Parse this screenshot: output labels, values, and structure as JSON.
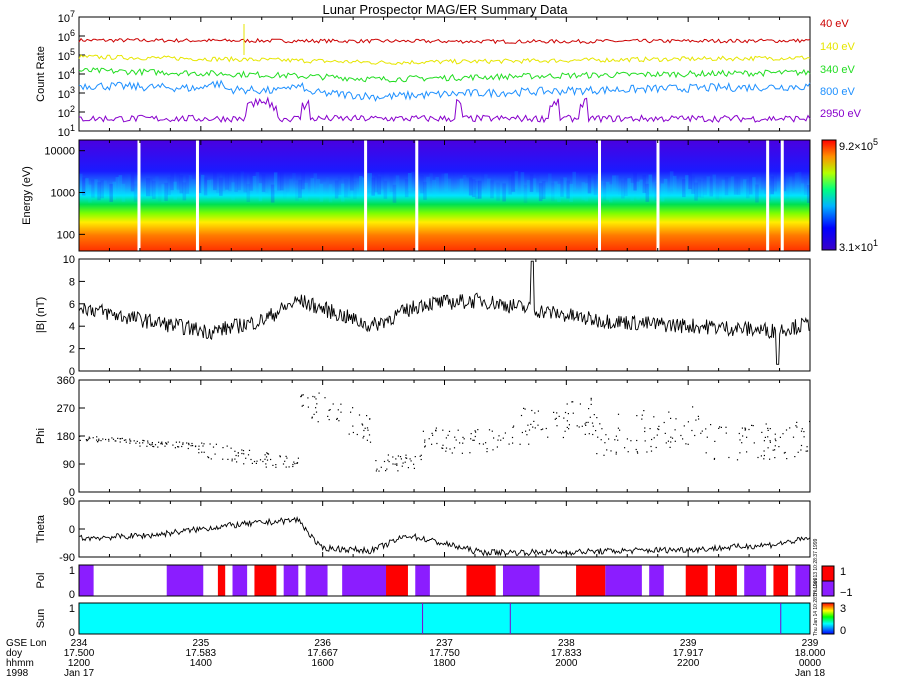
{
  "title": "Lunar Prospector MAG/ER Summary Data",
  "colors": {
    "ch40": "#cc0000",
    "ch140": "#e6e600",
    "ch340": "#22dd22",
    "ch800": "#1e90ff",
    "ch2950": "#8800cc",
    "pol_pos": "#ff0000",
    "pol_neg": "#8b1dff",
    "sun": "#00ffff",
    "line": "#000000"
  },
  "chart_data": [
    {
      "type": "line",
      "name": "count-rate",
      "ylabel": "Count Rate",
      "yscale": "log",
      "ylim": [
        10,
        10000000
      ],
      "yticks": [
        {
          "base": "10",
          "exp": "1"
        },
        {
          "base": "10",
          "exp": "2"
        },
        {
          "base": "10",
          "exp": "3"
        },
        {
          "base": "10",
          "exp": "4"
        },
        {
          "base": "10",
          "exp": "5"
        },
        {
          "base": "10",
          "exp": "6"
        },
        {
          "base": "10",
          "exp": "7"
        }
      ],
      "series": [
        {
          "name": "40 eV",
          "label": "40 eV",
          "color": "#cc0000",
          "base": 600000,
          "jitter": 0.1,
          "breakpoints": [
            [
              0.0,
              1.0
            ],
            [
              0.4,
              0.9
            ],
            [
              0.6,
              0.85
            ],
            [
              1.0,
              0.95
            ]
          ]
        },
        {
          "name": "140 eV",
          "label": "140 eV",
          "color": "#e6e600",
          "base": 80000,
          "jitter": 0.12,
          "breakpoints": [
            [
              0.0,
              1.0
            ],
            [
              0.41,
              0.5
            ],
            [
              0.6,
              0.6
            ],
            [
              1.0,
              0.9
            ]
          ]
        },
        {
          "name": "340 eV",
          "label": "340 eV",
          "color": "#22dd22",
          "base": 15000,
          "jitter": 0.16,
          "breakpoints": [
            [
              0.0,
              1.0
            ],
            [
              0.41,
              0.35
            ],
            [
              0.6,
              0.5
            ],
            [
              1.0,
              0.8
            ]
          ]
        },
        {
          "name": "800 eV",
          "label": "800 eV",
          "color": "#1e90ff",
          "base": 2500,
          "jitter": 0.22,
          "breakpoints": [
            [
              0.0,
              1.0
            ],
            [
              0.41,
              0.25
            ],
            [
              0.6,
              0.45
            ],
            [
              1.0,
              0.9
            ]
          ]
        },
        {
          "name": "2950 eV",
          "label": "2950 eV",
          "color": "#8800cc",
          "base": 45,
          "jitter": 0.18,
          "breakpoints": [
            [
              0.0,
              1.0
            ],
            [
              1.0,
              1.0
            ]
          ]
        }
      ]
    },
    {
      "type": "heatmap",
      "name": "energy-spectrogram",
      "ylabel": "Energy (eV)",
      "yscale": "log",
      "ylim": [
        40,
        18000
      ],
      "yticks": [
        "100",
        "1000",
        "10000"
      ],
      "colorbar": {
        "max_base": "9.2×10",
        "max_exp": "5",
        "min_base": "3.1×10",
        "min_exp": "1"
      },
      "gap_positions": [
        0.08,
        0.16,
        0.39,
        0.46,
        0.71,
        0.79,
        0.94,
        0.96
      ]
    },
    {
      "type": "line",
      "name": "field-magnitude",
      "ylabel": "|B| (nT)",
      "ylim": [
        0,
        10
      ],
      "yticks": [
        "0",
        "2",
        "4",
        "6",
        "8",
        "10"
      ],
      "mean_profile": [
        [
          0.0,
          5.8
        ],
        [
          0.05,
          5.0
        ],
        [
          0.1,
          4.4
        ],
        [
          0.18,
          3.5
        ],
        [
          0.25,
          4.5
        ],
        [
          0.3,
          6.3
        ],
        [
          0.35,
          5.2
        ],
        [
          0.4,
          4.0
        ],
        [
          0.47,
          6.0
        ],
        [
          0.55,
          6.3
        ],
        [
          0.62,
          5.5
        ],
        [
          0.7,
          4.6
        ],
        [
          0.78,
          4.2
        ],
        [
          0.85,
          4.0
        ],
        [
          0.95,
          3.6
        ],
        [
          1.0,
          4.2
        ]
      ],
      "noise": 0.7
    },
    {
      "type": "scatter",
      "name": "phi",
      "ylabel": "Phi",
      "ylim": [
        0,
        360
      ],
      "yticks": [
        "0",
        "90",
        "180",
        "270",
        "360"
      ],
      "segments": [
        {
          "x0": 0.0,
          "x1": 0.07,
          "y0": 175,
          "y1": 165,
          "spread": 8
        },
        {
          "x0": 0.07,
          "x1": 0.16,
          "y0": 160,
          "y1": 150,
          "spread": 10
        },
        {
          "x0": 0.16,
          "x1": 0.3,
          "y0": 140,
          "y1": 90,
          "spread": 25
        },
        {
          "x0": 0.3,
          "x1": 0.4,
          "y0": 300,
          "y1": 200,
          "spread": 50
        },
        {
          "x0": 0.4,
          "x1": 0.47,
          "y0": 90,
          "y1": 110,
          "spread": 30
        },
        {
          "x0": 0.47,
          "x1": 0.58,
          "y0": 170,
          "y1": 160,
          "spread": 40
        },
        {
          "x0": 0.58,
          "x1": 0.7,
          "y0": 200,
          "y1": 250,
          "spread": 60
        },
        {
          "x0": 0.7,
          "x1": 0.85,
          "y0": 180,
          "y1": 220,
          "spread": 70
        },
        {
          "x0": 0.85,
          "x1": 1.0,
          "y0": 160,
          "y1": 170,
          "spread": 60
        }
      ]
    },
    {
      "type": "line",
      "name": "theta",
      "ylabel": "Theta",
      "ylim": [
        -90,
        90
      ],
      "yticks": [
        "-90",
        "0",
        "90"
      ],
      "mean_profile": [
        [
          0.0,
          -30
        ],
        [
          0.1,
          -20
        ],
        [
          0.2,
          10
        ],
        [
          0.3,
          30
        ],
        [
          0.33,
          -60
        ],
        [
          0.4,
          -70
        ],
        [
          0.45,
          -20
        ],
        [
          0.55,
          -75
        ],
        [
          0.65,
          -75
        ],
        [
          0.75,
          -70
        ],
        [
          0.85,
          -65
        ],
        [
          0.95,
          -50
        ],
        [
          1.0,
          -30
        ]
      ],
      "noise": 10
    },
    {
      "type": "heatmap",
      "name": "polarity",
      "ylabel": "Pol",
      "yticks": [
        "0",
        "1"
      ],
      "colorbar_labels": [
        "1",
        "−1"
      ],
      "side_label": "Thu Jan 13 10:28:37 1999",
      "blocks": [
        {
          "x0": 0.0,
          "x1": 0.02,
          "v": -1
        },
        {
          "x0": 0.12,
          "x1": 0.17,
          "v": -1
        },
        {
          "x0": 0.19,
          "x1": 0.2,
          "v": 1
        },
        {
          "x0": 0.21,
          "x1": 0.23,
          "v": -1
        },
        {
          "x0": 0.24,
          "x1": 0.27,
          "v": 1
        },
        {
          "x0": 0.28,
          "x1": 0.3,
          "v": -1
        },
        {
          "x0": 0.31,
          "x1": 0.34,
          "v": -1
        },
        {
          "x0": 0.36,
          "x1": 0.42,
          "v": -1
        },
        {
          "x0": 0.42,
          "x1": 0.45,
          "v": 1
        },
        {
          "x0": 0.46,
          "x1": 0.48,
          "v": -1
        },
        {
          "x0": 0.53,
          "x1": 0.57,
          "v": 1
        },
        {
          "x0": 0.58,
          "x1": 0.63,
          "v": -1
        },
        {
          "x0": 0.68,
          "x1": 0.72,
          "v": 1
        },
        {
          "x0": 0.72,
          "x1": 0.77,
          "v": -1
        },
        {
          "x0": 0.78,
          "x1": 0.8,
          "v": -1
        },
        {
          "x0": 0.83,
          "x1": 0.86,
          "v": 1
        },
        {
          "x0": 0.87,
          "x1": 0.9,
          "v": 1
        },
        {
          "x0": 0.91,
          "x1": 0.94,
          "v": -1
        },
        {
          "x0": 0.95,
          "x1": 0.97,
          "v": 1
        },
        {
          "x0": 0.98,
          "x1": 1.0,
          "v": -1
        }
      ]
    },
    {
      "type": "heatmap",
      "name": "sun",
      "ylabel": "Sun",
      "yticks": [
        "0",
        "1"
      ],
      "colorbar_labels": [
        "3",
        "0"
      ],
      "value": 1,
      "markers": [
        0.47,
        0.59,
        0.96
      ]
    }
  ],
  "xaxis": {
    "row_labels": [
      "GSE Lon",
      "doy",
      "hhmm",
      "1998"
    ],
    "ticks": [
      {
        "lon": "234",
        "doy": "17.500",
        "hhmm": "1200",
        "date": "Jan 17"
      },
      {
        "lon": "235",
        "doy": "17.583",
        "hhmm": "1400",
        "date": ""
      },
      {
        "lon": "236",
        "doy": "17.667",
        "hhmm": "1600",
        "date": ""
      },
      {
        "lon": "237",
        "doy": "17.750",
        "hhmm": "1800",
        "date": ""
      },
      {
        "lon": "238",
        "doy": "17.833",
        "hhmm": "2000",
        "date": ""
      },
      {
        "lon": "239",
        "doy": "17.917",
        "hhmm": "2200",
        "date": ""
      },
      {
        "lon": "239",
        "doy": "18.000",
        "hhmm": "0000",
        "date": "Jan 18"
      }
    ]
  }
}
